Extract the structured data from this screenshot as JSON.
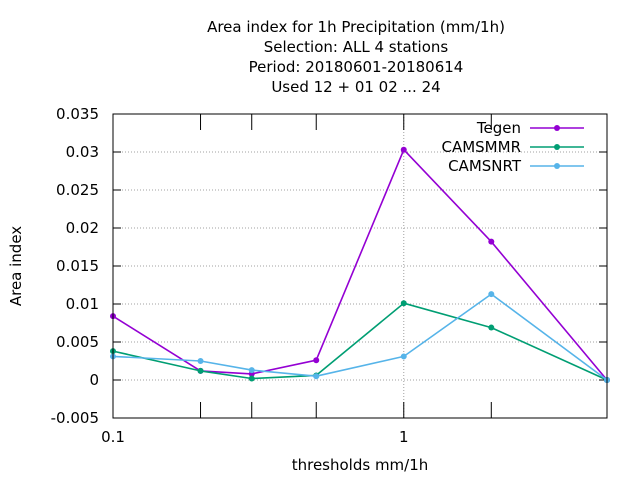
{
  "chart_data": {
    "type": "line",
    "title_lines": [
      "Area index  for 1h Precipitation (mm/1h)",
      "Selection: ALL      4 stations",
      "Period: 20180601-20180614",
      "Used  12 + 01 02 ... 24"
    ],
    "xlabel": "thresholds mm/1h",
    "ylabel": "Area index",
    "x_scale": "log",
    "xlim": [
      0.1,
      5
    ],
    "ylim": [
      -0.005,
      0.035
    ],
    "y_ticks": [
      -0.005,
      0,
      0.005,
      0.01,
      0.015,
      0.02,
      0.025,
      0.03,
      0.035
    ],
    "y_tick_labels": [
      "-0.005",
      "0",
      "0.005",
      "0.01",
      "0.015",
      "0.02",
      "0.025",
      "0.03",
      "0.035"
    ],
    "x_major_ticks": [
      0.1,
      1
    ],
    "x_major_tick_labels": [
      "0.1",
      "1"
    ],
    "x_minor_ticks": [
      0.2,
      0.3,
      0.5,
      2
    ],
    "grid": true,
    "legend_position": "top-right",
    "x": [
      0.1,
      0.2,
      0.3,
      0.5,
      1,
      2,
      5
    ],
    "series": [
      {
        "name": "Tegen",
        "color": "#9400d3",
        "values": [
          0.0084,
          0.0012,
          0.0008,
          0.0026,
          0.0303,
          0.0182,
          0.0
        ]
      },
      {
        "name": "CAMSMMR",
        "color": "#009e73",
        "values": [
          0.0038,
          0.0012,
          0.0002,
          0.0006,
          0.0101,
          0.0069,
          0.0
        ]
      },
      {
        "name": "CAMSNRT",
        "color": "#56b4e9",
        "values": [
          0.0031,
          0.0025,
          0.0013,
          0.0005,
          0.0031,
          0.0113,
          0.0
        ]
      }
    ]
  }
}
